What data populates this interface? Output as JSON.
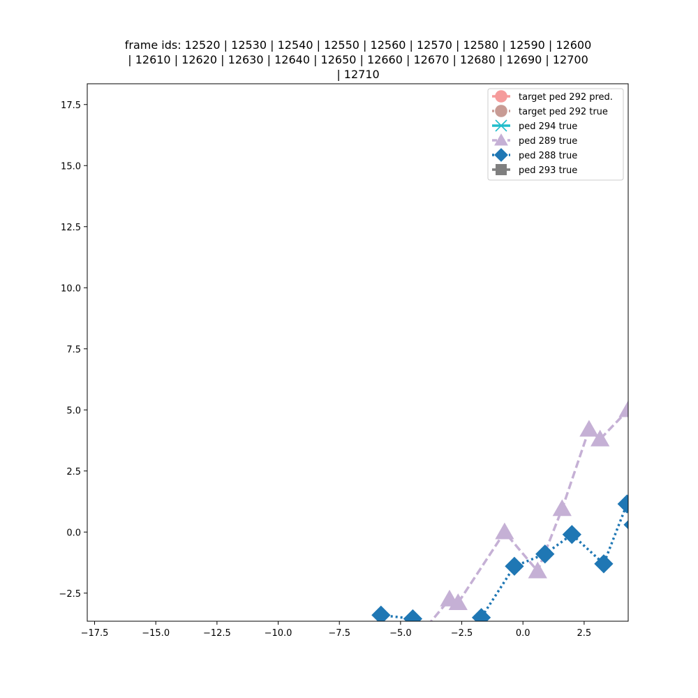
{
  "chart_data": {
    "type": "line",
    "title_lines": [
      "frame ids: 12520 | 12530 | 12540 | 12550 | 12560 | 12570 | 12580 | 12590 | 12600",
      "| 12610 | 12620 | 12630 | 12640 | 12650 | 12660 | 12670 | 12680 | 12690 | 12700",
      "| 12710"
    ],
    "xlim": [
      -17.8,
      4.3
    ],
    "ylim": [
      -3.65,
      18.35
    ],
    "x_ticks": [
      -17.5,
      -15.0,
      -12.5,
      -10.0,
      -7.5,
      -5.0,
      -2.5,
      0.0,
      2.5
    ],
    "x_tick_labels": [
      "−17.5",
      "−15.0",
      "−12.5",
      "−10.0",
      "−7.5",
      "−5.0",
      "−2.5",
      "0.0",
      "2.5"
    ],
    "y_ticks": [
      -2.5,
      0.0,
      2.5,
      5.0,
      7.5,
      10.0,
      12.5,
      15.0,
      17.5
    ],
    "y_tick_labels": [
      "−2.5",
      "0.0",
      "2.5",
      "5.0",
      "7.5",
      "10.0",
      "12.5",
      "15.0",
      "17.5"
    ],
    "grid": false,
    "legend_position": "top-right",
    "series": [
      {
        "name": "target ped 292 pred.",
        "color": "#f59b9b",
        "dash": "solid",
        "marker": "circle",
        "x": [],
        "y": []
      },
      {
        "name": "target ped 292 true",
        "color": "#c89b94",
        "dash": "dotted",
        "marker": "circle",
        "x": [],
        "y": []
      },
      {
        "name": "ped 294 true",
        "color": "#20bdcb",
        "dash": "solid",
        "marker": "x",
        "x": [],
        "y": []
      },
      {
        "name": "ped 289 true",
        "color": "#c5b0d5",
        "dash": "dashed",
        "marker": "triangle",
        "x": [
          -4.2,
          -3.0,
          -2.65,
          -0.75,
          0.6,
          1.6,
          2.7,
          3.15,
          4.3
        ],
        "y": [
          -4.2,
          -2.75,
          -2.9,
          0.0,
          -1.6,
          0.95,
          4.2,
          3.8,
          5.0
        ]
      },
      {
        "name": "ped 288 true",
        "color": "#1f77b4",
        "dash": "dotted",
        "marker": "diamond",
        "x": [
          -5.8,
          -4.5,
          -3.9,
          -2.2,
          -1.7,
          -0.35,
          0.9,
          2.0,
          3.3,
          4.25,
          4.5
        ],
        "y": [
          -3.4,
          -3.55,
          -4.2,
          -4.2,
          -3.5,
          -1.4,
          -0.9,
          -0.1,
          -1.3,
          1.15,
          0.3
        ]
      },
      {
        "name": "ped 293 true",
        "color": "#7f7f7f",
        "dash": "solid",
        "marker": "square",
        "x": [],
        "y": []
      }
    ]
  }
}
